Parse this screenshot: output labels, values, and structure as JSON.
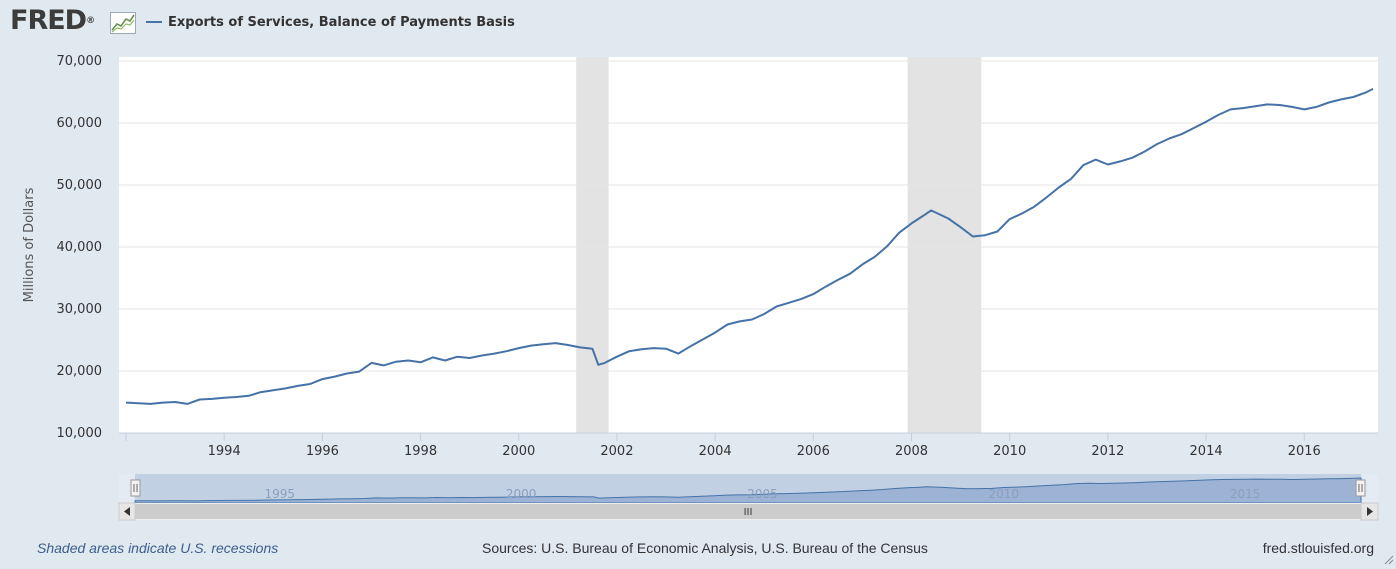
{
  "header": {
    "logo_text": "FRED",
    "logo_mark": "®"
  },
  "legend": {
    "series_label": "Exports of Services, Balance of Payments Basis",
    "series_color": "#4572a7"
  },
  "footer": {
    "recession_note": "Shaded areas indicate U.S. recessions",
    "sources": "Sources: U.S. Bureau of Economic Analysis, U.S. Bureau of the Census",
    "site": "fred.stlouisfed.org"
  },
  "navigator": {
    "labels": [
      "1995",
      "2000",
      "2005",
      "2010",
      "2015"
    ],
    "scroll_grip": "III"
  },
  "chart_data": {
    "type": "line",
    "title": "",
    "ylabel": "Millions of Dollars",
    "xlabel": "",
    "xlim": [
      1992.0,
      2017.4
    ],
    "ylim": [
      10000,
      70000
    ],
    "yticks": [
      10000,
      20000,
      30000,
      40000,
      50000,
      60000,
      70000
    ],
    "ytick_labels": [
      "10,000",
      "20,000",
      "30,000",
      "40,000",
      "50,000",
      "60,000",
      "70,000"
    ],
    "xticks": [
      1994,
      1996,
      1998,
      2000,
      2002,
      2004,
      2006,
      2008,
      2010,
      2012,
      2014,
      2016
    ],
    "xtick_labels": [
      "1994",
      "1996",
      "1998",
      "2000",
      "2002",
      "2004",
      "2006",
      "2008",
      "2010",
      "2012",
      "2014",
      "2016"
    ],
    "grid": true,
    "legend_position": "top-left",
    "recessions": [
      [
        2001.17,
        2001.83
      ],
      [
        2007.92,
        2009.42
      ]
    ],
    "series": [
      {
        "name": "Exports of Services, Balance of Payments Basis",
        "color": "#4572a7",
        "points": [
          [
            1992.0,
            14900
          ],
          [
            1992.25,
            14800
          ],
          [
            1992.5,
            14700
          ],
          [
            1992.75,
            14900
          ],
          [
            1993.0,
            15000
          ],
          [
            1993.25,
            14700
          ],
          [
            1993.5,
            15400
          ],
          [
            1993.75,
            15500
          ],
          [
            1994.0,
            15700
          ],
          [
            1994.25,
            15800
          ],
          [
            1994.5,
            16000
          ],
          [
            1994.75,
            16600
          ],
          [
            1995.0,
            16900
          ],
          [
            1995.25,
            17200
          ],
          [
            1995.5,
            17600
          ],
          [
            1995.75,
            17900
          ],
          [
            1996.0,
            18700
          ],
          [
            1996.25,
            19100
          ],
          [
            1996.5,
            19600
          ],
          [
            1996.75,
            19900
          ],
          [
            1997.0,
            21300
          ],
          [
            1997.25,
            20900
          ],
          [
            1997.5,
            21500
          ],
          [
            1997.75,
            21700
          ],
          [
            1998.0,
            21400
          ],
          [
            1998.25,
            22200
          ],
          [
            1998.5,
            21700
          ],
          [
            1998.75,
            22300
          ],
          [
            1999.0,
            22100
          ],
          [
            1999.25,
            22500
          ],
          [
            1999.5,
            22800
          ],
          [
            1999.75,
            23200
          ],
          [
            2000.0,
            23700
          ],
          [
            2000.25,
            24100
          ],
          [
            2000.5,
            24300
          ],
          [
            2000.75,
            24500
          ],
          [
            2001.0,
            24200
          ],
          [
            2001.25,
            23800
          ],
          [
            2001.5,
            23600
          ],
          [
            2001.62,
            21000
          ],
          [
            2001.75,
            21300
          ],
          [
            2002.0,
            22300
          ],
          [
            2002.25,
            23200
          ],
          [
            2002.5,
            23500
          ],
          [
            2002.75,
            23700
          ],
          [
            2003.0,
            23600
          ],
          [
            2003.25,
            22800
          ],
          [
            2003.5,
            24000
          ],
          [
            2003.75,
            25100
          ],
          [
            2004.0,
            26200
          ],
          [
            2004.25,
            27500
          ],
          [
            2004.5,
            28000
          ],
          [
            2004.75,
            28300
          ],
          [
            2005.0,
            29200
          ],
          [
            2005.25,
            30400
          ],
          [
            2005.5,
            31000
          ],
          [
            2005.75,
            31600
          ],
          [
            2006.0,
            32400
          ],
          [
            2006.25,
            33600
          ],
          [
            2006.5,
            34700
          ],
          [
            2006.75,
            35700
          ],
          [
            2007.0,
            37200
          ],
          [
            2007.25,
            38400
          ],
          [
            2007.5,
            40100
          ],
          [
            2007.75,
            42300
          ],
          [
            2008.0,
            43800
          ],
          [
            2008.25,
            45100
          ],
          [
            2008.4,
            45900
          ],
          [
            2008.75,
            44600
          ],
          [
            2009.0,
            43200
          ],
          [
            2009.25,
            41700
          ],
          [
            2009.5,
            41900
          ],
          [
            2009.75,
            42500
          ],
          [
            2010.0,
            44500
          ],
          [
            2010.25,
            45400
          ],
          [
            2010.5,
            46500
          ],
          [
            2010.75,
            48000
          ],
          [
            2011.0,
            49600
          ],
          [
            2011.25,
            51000
          ],
          [
            2011.5,
            53200
          ],
          [
            2011.75,
            54100
          ],
          [
            2012.0,
            53300
          ],
          [
            2012.25,
            53800
          ],
          [
            2012.5,
            54400
          ],
          [
            2012.75,
            55400
          ],
          [
            2013.0,
            56600
          ],
          [
            2013.25,
            57500
          ],
          [
            2013.5,
            58200
          ],
          [
            2013.75,
            59200
          ],
          [
            2014.0,
            60200
          ],
          [
            2014.25,
            61300
          ],
          [
            2014.5,
            62200
          ],
          [
            2014.75,
            62400
          ],
          [
            2015.0,
            62700
          ],
          [
            2015.25,
            63000
          ],
          [
            2015.5,
            62900
          ],
          [
            2015.75,
            62600
          ],
          [
            2016.0,
            62200
          ],
          [
            2016.25,
            62600
          ],
          [
            2016.5,
            63300
          ],
          [
            2016.75,
            63800
          ],
          [
            2017.0,
            64200
          ],
          [
            2017.25,
            64900
          ],
          [
            2017.4,
            65500
          ]
        ]
      }
    ]
  }
}
